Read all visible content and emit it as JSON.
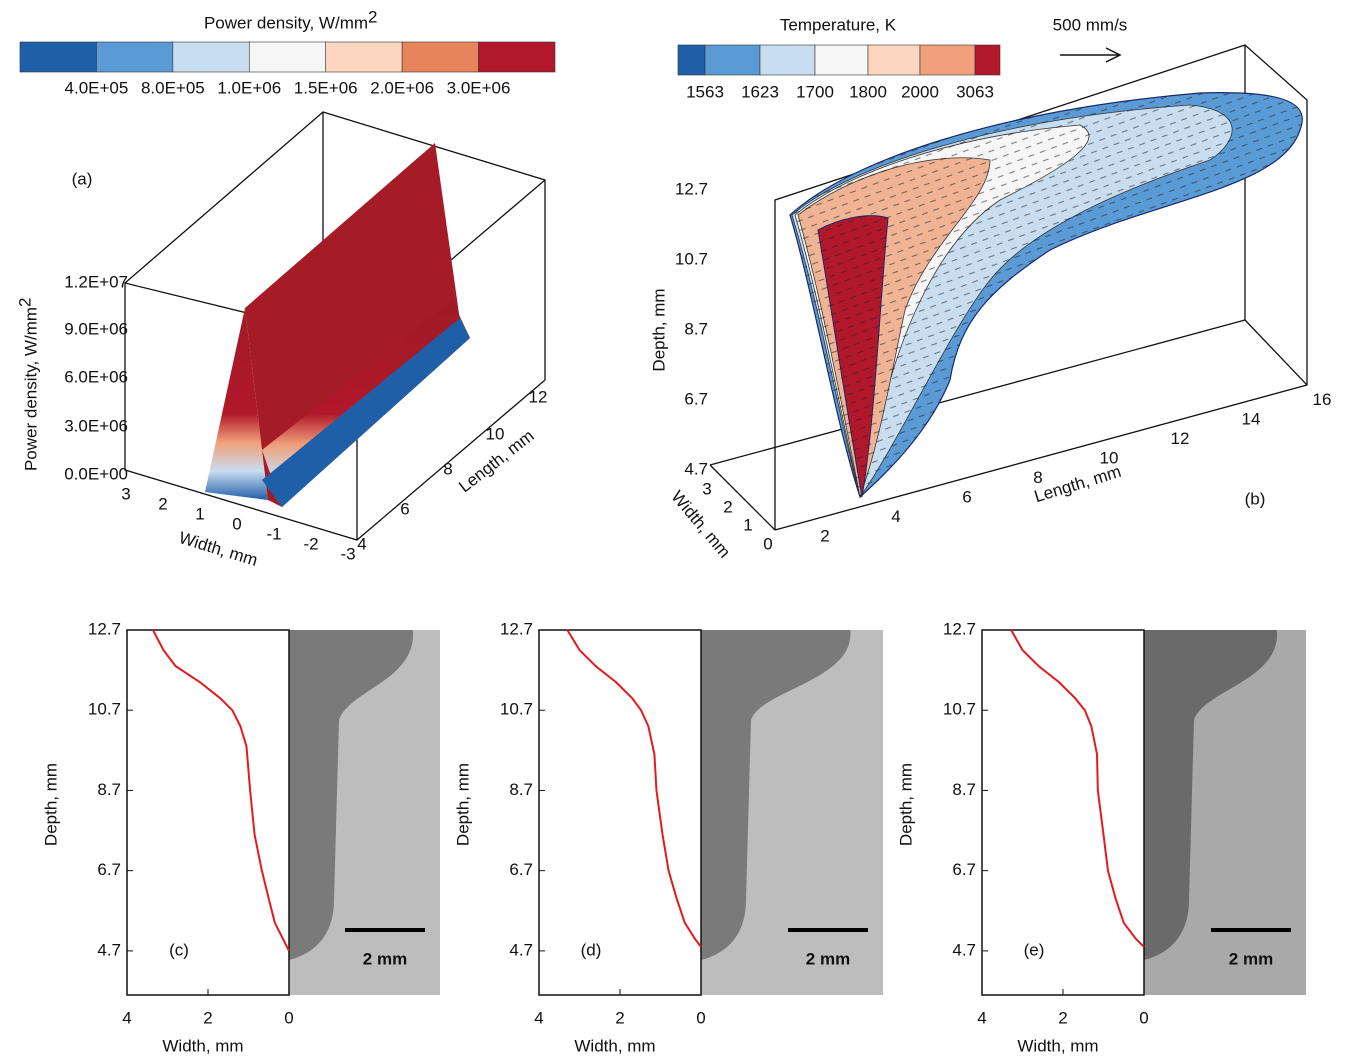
{
  "panel_a": {
    "label": "(a)",
    "colorbar": {
      "title": "Power density, W/mm",
      "title_superscript": "2",
      "labels": [
        "4.0E+05",
        "8.0E+05",
        "1.0E+06",
        "1.5E+06",
        "2.0E+06",
        "3.0E+06"
      ],
      "colors": [
        "#1f5fa8",
        "#5b9bd5",
        "#c9ddf0",
        "#f6f6f6",
        "#fdd6bf",
        "#e8845c",
        "#b2182b"
      ]
    },
    "z_axis": {
      "title": "Power density, W/mm",
      "title_superscript": "2",
      "ticks": [
        "1.2E+07",
        "9.0E+06",
        "6.0E+06",
        "3.0E+06",
        "0.0E+00"
      ]
    },
    "width_axis": {
      "title": "Width, mm",
      "ticks": [
        "3",
        "2",
        "1",
        "0",
        "-1",
        "-2",
        "-3"
      ]
    },
    "length_axis": {
      "title": "Length, mm",
      "ticks": [
        "4",
        "6",
        "8",
        "10",
        "12"
      ]
    }
  },
  "panel_b": {
    "label": "(b)",
    "colorbar": {
      "title": "Temperature, K",
      "labels": [
        "1563",
        "1623",
        "1700",
        "1800",
        "2000",
        "3063"
      ],
      "colors": [
        "#1f5fa8",
        "#5b9bd5",
        "#c9ddf0",
        "#f6f6f6",
        "#fdd6bf",
        "#f0a07a",
        "#b2182b"
      ]
    },
    "vector_scale": "500 mm/s",
    "depth_axis": {
      "title": "Depth, mm",
      "ticks": [
        "12.7",
        "10.7",
        "8.7",
        "6.7",
        "4.7"
      ]
    },
    "width_axis": {
      "title": "Width, mm",
      "ticks": [
        "3",
        "2",
        "1",
        "0"
      ]
    },
    "length_axis": {
      "title": "Length, mm",
      "ticks": [
        "2",
        "4",
        "6",
        "8",
        "10",
        "12",
        "14",
        "16"
      ]
    }
  },
  "chart_data": [
    {
      "type": "line",
      "label": "(c)",
      "scale_bar": "2 mm",
      "xlabel": "Width, mm",
      "ylabel": "Depth, mm",
      "xlim": [
        4,
        0
      ],
      "ylim": [
        3.6,
        12.7
      ],
      "xticks": [
        4,
        2,
        0
      ],
      "yticks": [
        12.7,
        10.7,
        8.7,
        6.7,
        4.7
      ],
      "series": [
        {
          "color": "#e41a1c",
          "x": [
            3.36,
            3.1,
            2.8,
            2.2,
            1.7,
            1.4,
            1.2,
            1.05,
            0.96,
            0.85,
            0.67,
            0.5,
            0.35,
            0.15,
            0
          ],
          "values": [
            12.7,
            12.2,
            11.8,
            11.4,
            11.0,
            10.7,
            10.3,
            9.8,
            8.7,
            7.6,
            6.7,
            6.0,
            5.4,
            5.0,
            4.7
          ]
        }
      ]
    },
    {
      "type": "line",
      "label": "(d)",
      "scale_bar": "2 mm",
      "xlabel": "Width, mm",
      "ylabel": "Depth, mm",
      "xlim": [
        4,
        0
      ],
      "ylim": [
        3.6,
        12.7
      ],
      "xticks": [
        4,
        2,
        0
      ],
      "yticks": [
        12.7,
        10.7,
        8.7,
        6.7,
        4.7
      ],
      "series": [
        {
          "color": "#e41a1c",
          "x": [
            3.3,
            3.0,
            2.6,
            2.1,
            1.7,
            1.48,
            1.3,
            1.15,
            1.1,
            0.95,
            0.8,
            0.6,
            0.4,
            0.15,
            0
          ],
          "values": [
            12.7,
            12.2,
            11.8,
            11.4,
            11.0,
            10.7,
            10.3,
            9.6,
            8.7,
            7.6,
            6.7,
            6.0,
            5.4,
            5.0,
            4.8
          ]
        }
      ]
    },
    {
      "type": "line",
      "label": "(e)",
      "scale_bar": "2 mm",
      "xlabel": "Width, mm",
      "ylabel": "Depth, mm",
      "xlim": [
        4,
        0
      ],
      "ylim": [
        3.6,
        12.7
      ],
      "xticks": [
        4,
        2,
        0
      ],
      "yticks": [
        12.7,
        10.7,
        8.7,
        6.7,
        4.7
      ],
      "series": [
        {
          "color": "#e41a1c",
          "x": [
            3.28,
            3.0,
            2.6,
            2.1,
            1.7,
            1.46,
            1.3,
            1.16,
            1.14,
            1.0,
            0.89,
            0.7,
            0.5,
            0.2,
            0
          ],
          "values": [
            12.7,
            12.2,
            11.8,
            11.4,
            11.0,
            10.7,
            10.3,
            9.6,
            8.7,
            7.6,
            6.7,
            6.0,
            5.4,
            5.0,
            4.8
          ]
        }
      ]
    }
  ]
}
